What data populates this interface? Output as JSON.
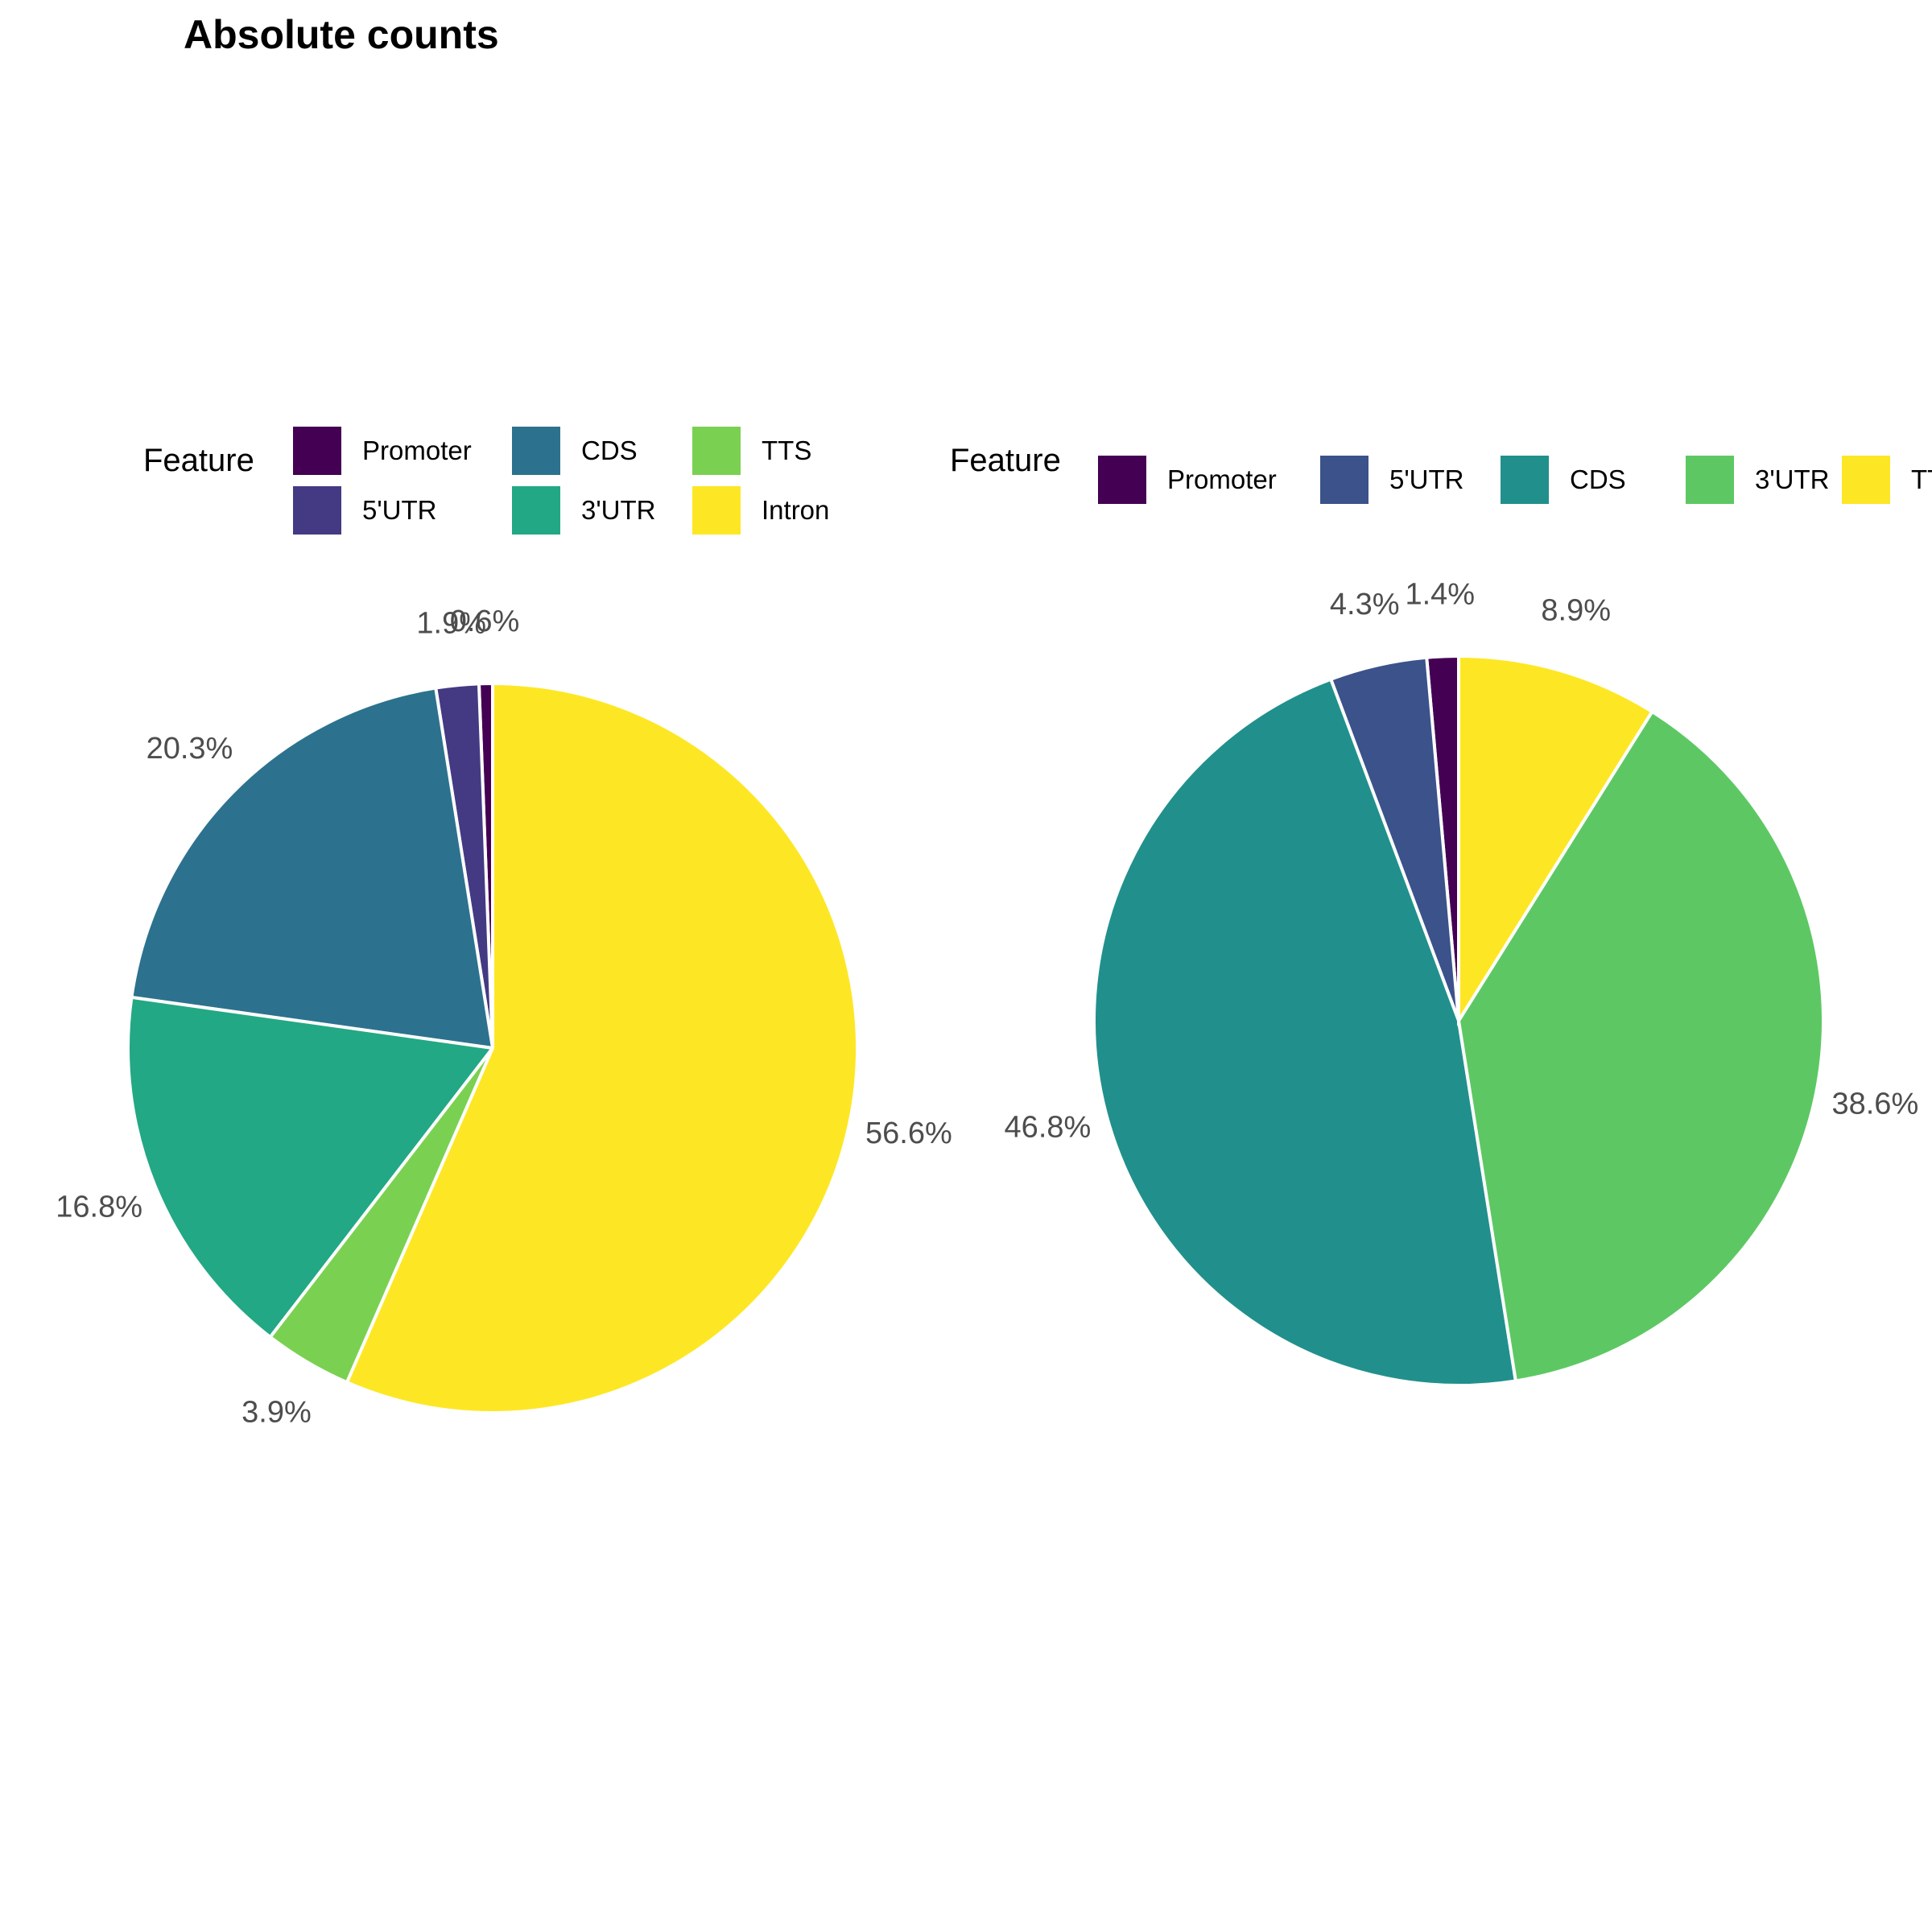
{
  "title": "Absolute counts",
  "chart_data": [
    {
      "type": "pie",
      "legend_title": "Feature",
      "legend_placement": "top",
      "categories": [
        "Promoter",
        "5'UTR",
        "CDS",
        "3'UTR",
        "TTS",
        "Intron"
      ],
      "values": [
        0.6,
        1.9,
        20.3,
        16.8,
        3.9,
        56.6
      ],
      "labels": [
        "0.6%",
        "1.9%",
        "20.3%",
        "16.8%",
        "3.9%",
        "56.6%"
      ],
      "colors": [
        "#440154",
        "#443a83",
        "#2c728e",
        "#22a884",
        "#7ad151",
        "#fde725"
      ]
    },
    {
      "type": "pie",
      "legend_title": "Feature",
      "legend_placement": "top",
      "categories": [
        "Promoter",
        "5'UTR",
        "CDS",
        "3'UTR",
        "TTS"
      ],
      "values": [
        1.4,
        4.3,
        46.8,
        38.6,
        8.9
      ],
      "labels": [
        "1.4%",
        "4.3%",
        "46.8%",
        "38.6%",
        "8.9%"
      ],
      "colors": [
        "#440154",
        "#3b528b",
        "#21908c",
        "#5dc863",
        "#fde725"
      ]
    }
  ]
}
